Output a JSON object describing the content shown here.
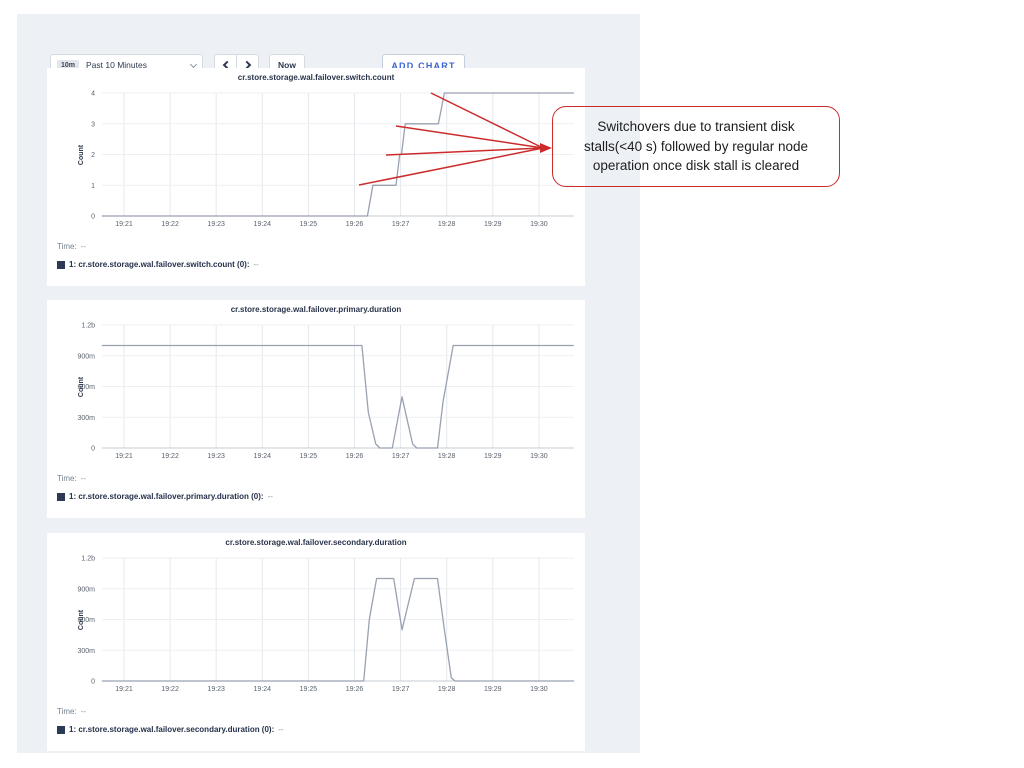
{
  "colors": {
    "accent_blue": "#3b62d6",
    "annotation_red": "#cc2b2b",
    "series_line": "#99a1b0",
    "legend_swatch": "#2b3a55",
    "panel_bg": "#edf1f5"
  },
  "toolbar": {
    "range_badge": "10m",
    "range_label": "Past 10 Minutes",
    "now_label": "Now",
    "add_chart_label": "ADD CHART"
  },
  "annotation": {
    "text": "Switchovers due to transient disk stalls(<40 s) followed by regular node operation once disk stall is cleared",
    "converge": [
      543,
      148
    ],
    "arrow_head_apex": [
      552,
      148
    ],
    "targets": [
      [
        359,
        185
      ],
      [
        386,
        155
      ],
      [
        396,
        126
      ],
      [
        431,
        93
      ]
    ]
  },
  "charts": [
    {
      "title": "cr.store.storage.wal.failover.switch.count",
      "time_label": "Time:",
      "time_value": "--",
      "series_label": "1: cr.store.storage.wal.failover.switch.count (0):",
      "series_value": "--",
      "chart_data": {
        "type": "line",
        "title": "cr.store.storage.wal.failover.switch.count",
        "ylabel": "Count",
        "x_ticks": [
          "19:21",
          "19:22",
          "19:23",
          "19:24",
          "19:25",
          "19:26",
          "19:27",
          "19:28",
          "19:29",
          "19:30"
        ],
        "y_ticks": [
          {
            "label": "4",
            "v": 4
          },
          {
            "label": "3",
            "v": 3
          },
          {
            "label": "2",
            "v": 2
          },
          {
            "label": "1",
            "v": 1
          },
          {
            "label": "0",
            "v": 0
          }
        ],
        "x_domain_minutes_after_1920": [
          0.52,
          10.76
        ],
        "ylim": [
          0,
          4.35
        ],
        "points": [
          [
            0.52,
            0
          ],
          [
            6.28,
            0
          ],
          [
            6.4,
            1
          ],
          [
            6.9,
            1
          ],
          [
            6.98,
            2
          ],
          [
            7.02,
            2
          ],
          [
            7.1,
            3
          ],
          [
            7.82,
            3
          ],
          [
            7.95,
            4
          ],
          [
            10.76,
            4
          ]
        ]
      }
    },
    {
      "title": "cr.store.storage.wal.failover.primary.duration",
      "time_label": "Time:",
      "time_value": "--",
      "series_label": "1: cr.store.storage.wal.failover.primary.duration (0):",
      "series_value": "--",
      "chart_data": {
        "type": "line",
        "title": "cr.store.storage.wal.failover.primary.duration",
        "ylabel": "Count",
        "x_ticks": [
          "19:21",
          "19:22",
          "19:23",
          "19:24",
          "19:25",
          "19:26",
          "19:27",
          "19:28",
          "19:29",
          "19:30"
        ],
        "y_ticks": [
          {
            "label": "1.2b",
            "v": 1.2
          },
          {
            "label": "900m",
            "v": 0.9
          },
          {
            "label": "600m",
            "v": 0.6
          },
          {
            "label": "300m",
            "v": 0.3
          },
          {
            "label": "0",
            "v": 0
          }
        ],
        "x_domain_minutes_after_1920": [
          0.52,
          10.76
        ],
        "ylim": [
          0,
          1.3
        ],
        "points": [
          [
            0.52,
            1
          ],
          [
            6.16,
            1
          ],
          [
            6.3,
            0.35
          ],
          [
            6.46,
            0.04
          ],
          [
            6.55,
            0
          ],
          [
            6.82,
            0
          ],
          [
            7.03,
            0.5
          ],
          [
            7.26,
            0.04
          ],
          [
            7.35,
            0
          ],
          [
            7.8,
            0
          ],
          [
            7.92,
            0.45
          ],
          [
            8.14,
            1
          ],
          [
            10.76,
            1
          ]
        ]
      }
    },
    {
      "title": "cr.store.storage.wal.failover.secondary.duration",
      "time_label": "Time:",
      "time_value": "--",
      "series_label": "1: cr.store.storage.wal.failover.secondary.duration (0):",
      "series_value": "--",
      "chart_data": {
        "type": "line",
        "title": "cr.store.storage.wal.failover.secondary.duration",
        "ylabel": "Count",
        "x_ticks": [
          "19:21",
          "19:22",
          "19:23",
          "19:24",
          "19:25",
          "19:26",
          "19:27",
          "19:28",
          "19:29",
          "19:30"
        ],
        "y_ticks": [
          {
            "label": "1.2b",
            "v": 1.2
          },
          {
            "label": "900m",
            "v": 0.9
          },
          {
            "label": "600m",
            "v": 0.6
          },
          {
            "label": "300m",
            "v": 0.3
          },
          {
            "label": "0",
            "v": 0
          }
        ],
        "x_domain_minutes_after_1920": [
          0.52,
          10.76
        ],
        "ylim": [
          0,
          1.3
        ],
        "points": [
          [
            0.52,
            0
          ],
          [
            6.2,
            0
          ],
          [
            6.32,
            0.6
          ],
          [
            6.48,
            1
          ],
          [
            6.85,
            1
          ],
          [
            7.03,
            0.5
          ],
          [
            7.3,
            1
          ],
          [
            7.8,
            1
          ],
          [
            7.95,
            0.5
          ],
          [
            8.1,
            0.03
          ],
          [
            8.18,
            0
          ],
          [
            10.76,
            0
          ]
        ]
      }
    }
  ]
}
